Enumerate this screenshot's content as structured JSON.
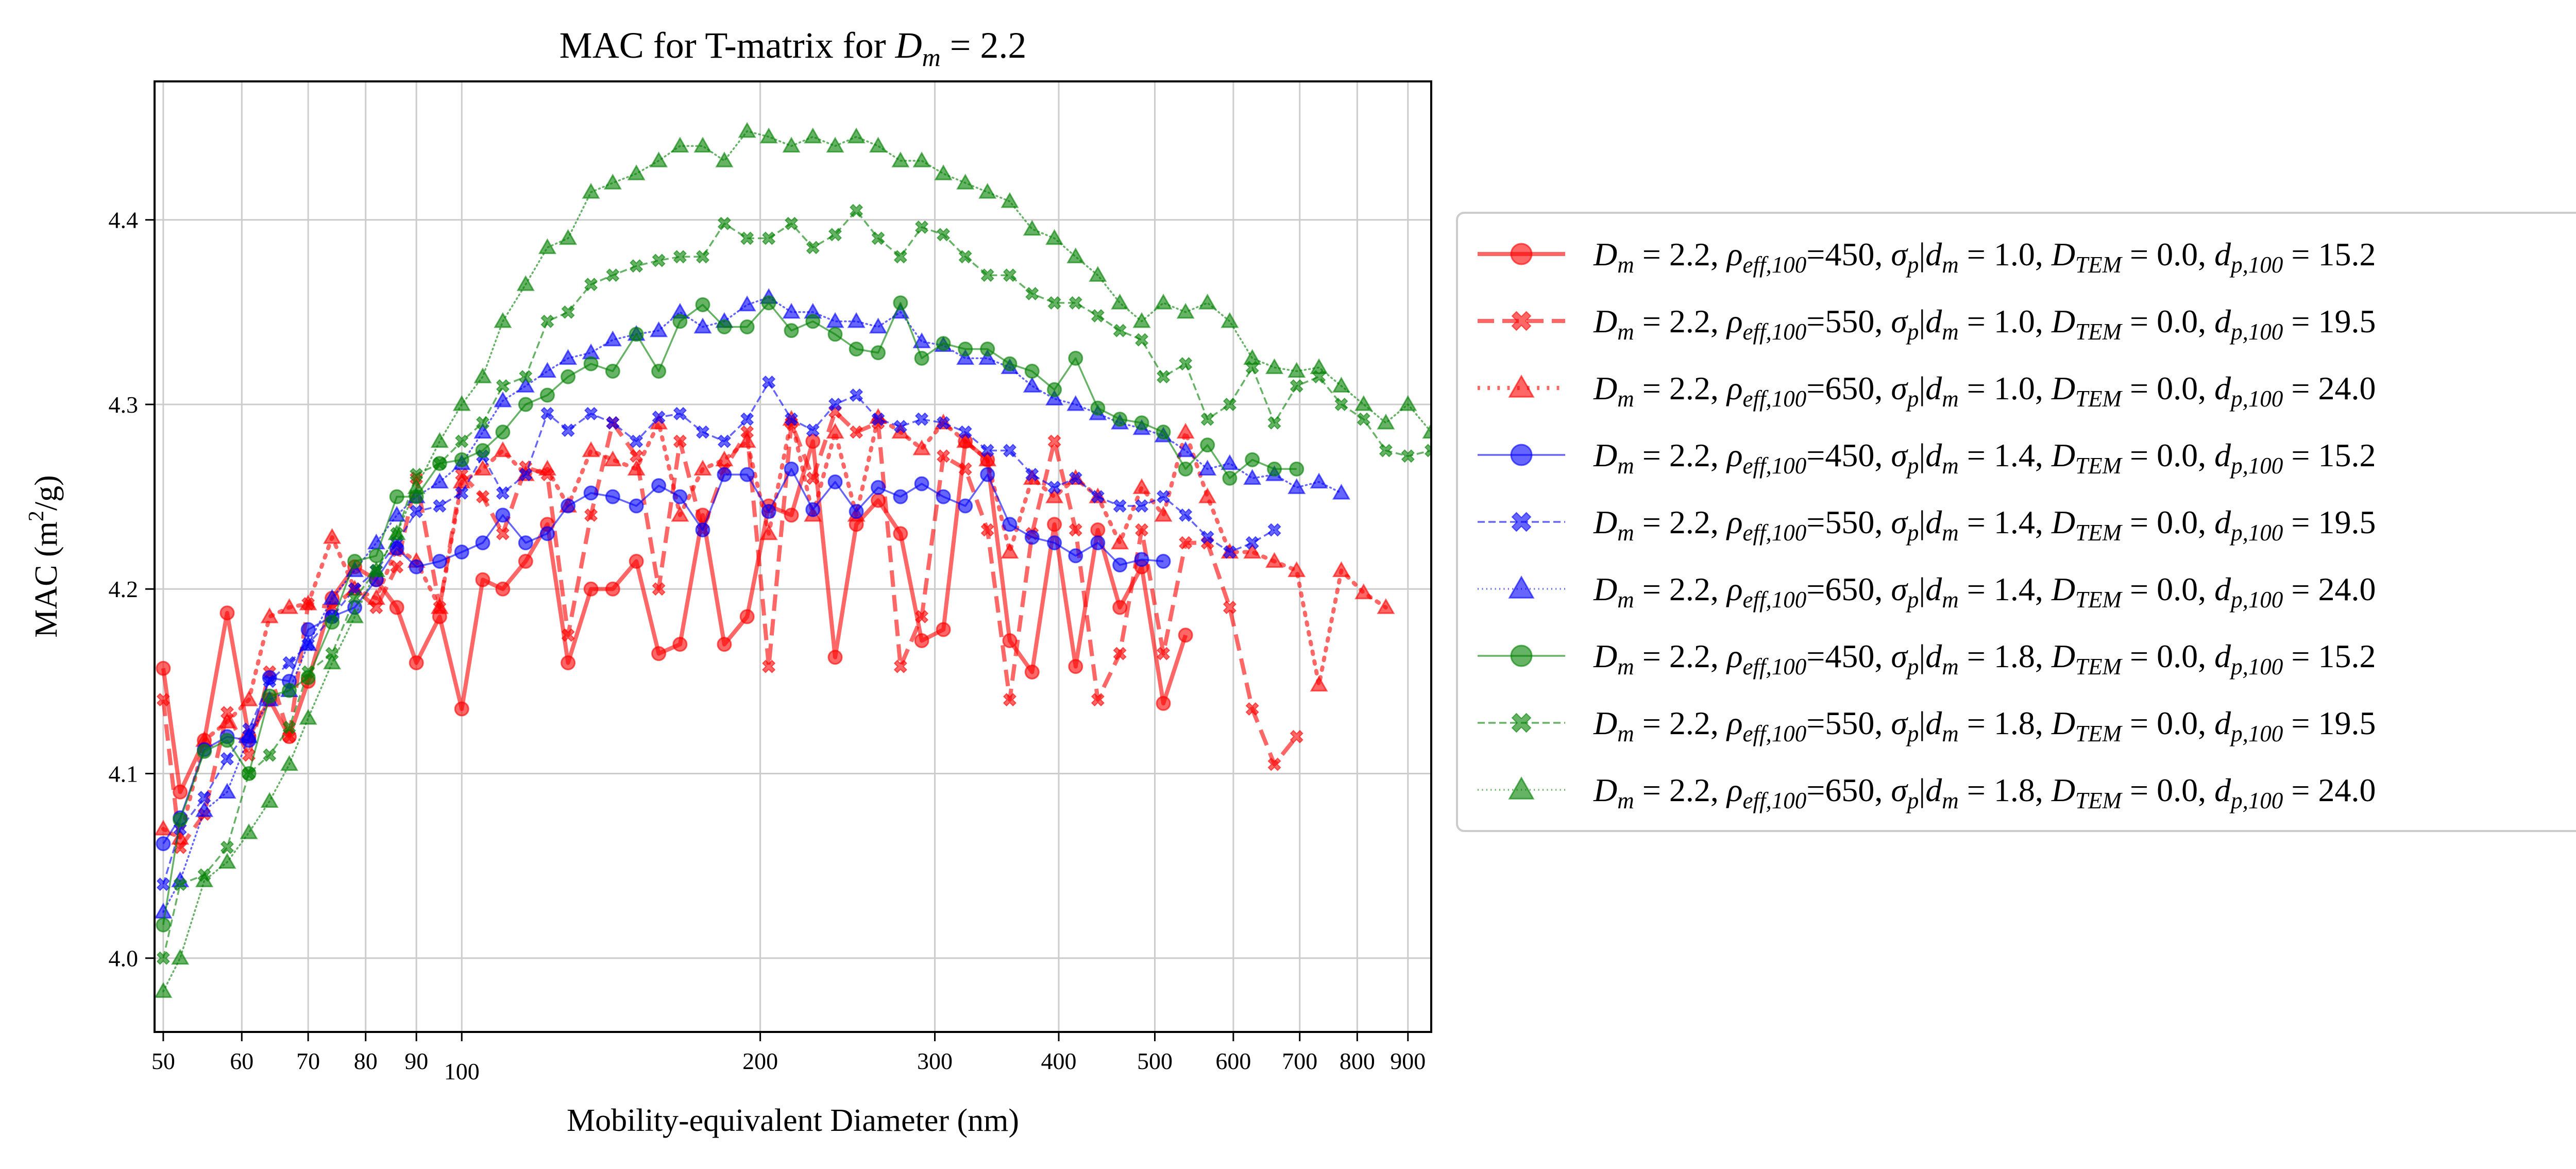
{
  "chart_data": {
    "type": "line",
    "title": "MAC for T-matrix for D_m = 2.2",
    "xlabel": "Mobility-equivalent Diameter (nm)",
    "ylabel": "MAC (m²/g)",
    "xscale": "log",
    "xlim": [
      49,
      950
    ],
    "ylim": [
      3.96,
      4.475
    ],
    "x_ticks": [
      50,
      60,
      70,
      80,
      90,
      100,
      200,
      300,
      400,
      500,
      600,
      700,
      800,
      900
    ],
    "x_tick_labels": [
      "50",
      "60",
      "70",
      "80",
      "90",
      "100",
      "200",
      "300",
      "400",
      "500",
      "600",
      "700",
      "800",
      "900"
    ],
    "y_ticks": [
      4.0,
      4.1,
      4.2,
      4.3,
      4.4
    ],
    "y_tick_labels": [
      "4.0",
      "4.1",
      "4.2",
      "4.3",
      "4.4"
    ],
    "grid": true,
    "legend_position": "outside-right",
    "series": [
      {
        "name": "D_m = 2.2, ρ_eff,100=450, σ_p|d_m = 1.0, D_TEM = 0.0, d_p,100 = 15.2",
        "color": "#ff0000",
        "line": "solid",
        "line_width": "thick",
        "marker": "circle",
        "x": [
          50,
          52,
          55,
          58,
          61,
          64,
          67,
          70,
          74,
          78,
          82,
          86,
          90,
          95,
          100,
          105,
          110,
          116,
          122,
          128,
          135,
          142,
          150,
          158,
          166,
          175,
          184,
          194,
          204,
          215,
          226,
          238,
          250,
          263,
          277,
          291,
          306,
          322,
          339,
          357,
          376,
          396,
          416,
          438,
          461,
          485,
          510,
          537
        ],
        "y": [
          4.157,
          4.09,
          4.118,
          4.187,
          4.12,
          4.14,
          4.12,
          4.15,
          4.195,
          4.212,
          4.205,
          4.19,
          4.16,
          4.185,
          4.135,
          4.205,
          4.2,
          4.215,
          4.235,
          4.16,
          4.2,
          4.2,
          4.215,
          4.165,
          4.17,
          4.24,
          4.17,
          4.185,
          4.245,
          4.24,
          4.28,
          4.163,
          4.235,
          4.248,
          4.23,
          4.172,
          4.178,
          4.28,
          4.27,
          4.172,
          4.155,
          4.235,
          4.158,
          4.232,
          4.19,
          4.212,
          4.138,
          4.175
        ]
      },
      {
        "name": "D_m = 2.2, ρ_eff,100=550, σ_p|d_m = 1.0, D_TEM = 0.0, d_p,100 = 19.5",
        "color": "#ff0000",
        "line": "dashed",
        "line_width": "thick",
        "marker": "x",
        "x": [
          50,
          52,
          55,
          58,
          61,
          64,
          67,
          70,
          74,
          78,
          82,
          86,
          90,
          95,
          100,
          105,
          110,
          116,
          122,
          128,
          135,
          142,
          150,
          158,
          166,
          175,
          184,
          194,
          204,
          215,
          226,
          238,
          250,
          263,
          277,
          291,
          306,
          322,
          339,
          357,
          376,
          396,
          416,
          438,
          461,
          485,
          510,
          537,
          565,
          595,
          627,
          660,
          695
        ],
        "y": [
          4.14,
          4.06,
          4.078,
          4.133,
          4.11,
          4.155,
          4.12,
          4.192,
          4.19,
          4.2,
          4.19,
          4.212,
          4.26,
          4.19,
          4.262,
          4.25,
          4.23,
          4.266,
          4.262,
          4.175,
          4.24,
          4.29,
          4.272,
          4.2,
          4.28,
          4.232,
          4.265,
          4.285,
          4.158,
          4.29,
          4.26,
          4.296,
          4.285,
          4.29,
          4.158,
          4.185,
          4.272,
          4.265,
          4.232,
          4.14,
          4.23,
          4.28,
          4.232,
          4.14,
          4.165,
          4.232,
          4.165,
          4.225,
          4.225,
          4.19,
          4.135,
          4.105,
          4.12
        ]
      },
      {
        "name": "D_m = 2.2, ρ_eff,100=650, σ_p|d_m = 1.0, D_TEM = 0.0, d_p,100 = 24.0",
        "color": "#ff0000",
        "line": "dotted",
        "line_width": "thick",
        "marker": "triangle",
        "x": [
          50,
          52,
          55,
          58,
          61,
          64,
          67,
          70,
          74,
          78,
          82,
          86,
          90,
          95,
          100,
          105,
          110,
          116,
          122,
          128,
          135,
          142,
          150,
          158,
          166,
          175,
          184,
          194,
          204,
          215,
          226,
          238,
          250,
          263,
          277,
          291,
          306,
          322,
          339,
          357,
          376,
          396,
          416,
          438,
          461,
          485,
          510,
          537,
          565,
          595,
          627,
          660,
          695,
          732,
          771,
          812,
          855
        ],
        "y": [
          4.07,
          4.065,
          4.118,
          4.128,
          4.14,
          4.185,
          4.19,
          4.192,
          4.228,
          4.2,
          4.195,
          4.222,
          4.215,
          4.19,
          4.258,
          4.265,
          4.275,
          4.262,
          4.265,
          4.245,
          4.275,
          4.27,
          4.265,
          4.29,
          4.24,
          4.265,
          4.27,
          4.28,
          4.23,
          4.292,
          4.24,
          4.285,
          4.24,
          4.293,
          4.285,
          4.276,
          4.29,
          4.28,
          4.27,
          4.22,
          4.26,
          4.25,
          4.26,
          4.25,
          4.225,
          4.255,
          4.24,
          4.285,
          4.25,
          4.22,
          4.22,
          4.215,
          4.21,
          4.148,
          4.21,
          4.198,
          4.19
        ]
      },
      {
        "name": "D_m = 2.2, ρ_eff,100=450, σ_p|d_m = 1.4, D_TEM = 0.0, d_p,100 = 15.2",
        "color": "#0000ff",
        "line": "solid",
        "line_width": "thin",
        "marker": "circle",
        "x": [
          50,
          52,
          55,
          58,
          61,
          64,
          67,
          70,
          74,
          78,
          82,
          86,
          90,
          95,
          100,
          105,
          110,
          116,
          122,
          128,
          135,
          142,
          150,
          158,
          166,
          175,
          184,
          194,
          204,
          215,
          226,
          238,
          250,
          263,
          277,
          291,
          306,
          322,
          339,
          357,
          376,
          396,
          416,
          438,
          461,
          485,
          510
        ],
        "y": [
          4.062,
          4.076,
          4.113,
          4.12,
          4.118,
          4.152,
          4.15,
          4.178,
          4.185,
          4.19,
          4.205,
          4.222,
          4.212,
          4.215,
          4.22,
          4.225,
          4.24,
          4.225,
          4.23,
          4.245,
          4.252,
          4.25,
          4.245,
          4.256,
          4.25,
          4.232,
          4.262,
          4.262,
          4.242,
          4.265,
          4.243,
          4.258,
          4.242,
          4.255,
          4.25,
          4.257,
          4.25,
          4.245,
          4.262,
          4.235,
          4.228,
          4.225,
          4.218,
          4.225,
          4.213,
          4.216,
          4.215
        ]
      },
      {
        "name": "D_m = 2.2, ρ_eff,100=550, σ_p|d_m = 1.4, D_TEM = 0.0, d_p,100 = 19.5",
        "color": "#0000ff",
        "line": "dashed",
        "line_width": "thin",
        "marker": "x",
        "x": [
          50,
          52,
          55,
          58,
          61,
          64,
          67,
          70,
          74,
          78,
          82,
          86,
          90,
          95,
          100,
          105,
          110,
          116,
          122,
          128,
          135,
          142,
          150,
          158,
          166,
          175,
          184,
          194,
          204,
          215,
          226,
          238,
          250,
          263,
          277,
          291,
          306,
          322,
          339,
          357,
          376,
          396,
          416,
          438,
          461,
          485,
          510,
          537,
          565,
          595,
          627,
          660
        ],
        "y": [
          4.04,
          4.07,
          4.087,
          4.108,
          4.124,
          4.15,
          4.16,
          4.17,
          4.185,
          4.2,
          4.21,
          4.225,
          4.242,
          4.245,
          4.252,
          4.272,
          4.252,
          4.262,
          4.295,
          4.286,
          4.295,
          4.29,
          4.28,
          4.293,
          4.295,
          4.285,
          4.28,
          4.292,
          4.312,
          4.292,
          4.286,
          4.3,
          4.305,
          4.292,
          4.288,
          4.292,
          4.29,
          4.285,
          4.275,
          4.275,
          4.262,
          4.255,
          4.26,
          4.25,
          4.245,
          4.245,
          4.25,
          4.24,
          4.228,
          4.22,
          4.225,
          4.232
        ]
      },
      {
        "name": "D_m = 2.2, ρ_eff,100=650, σ_p|d_m = 1.4, D_TEM = 0.0, d_p,100 = 24.0",
        "color": "#0000ff",
        "line": "dotted",
        "line_width": "thin",
        "marker": "triangle",
        "x": [
          50,
          52,
          55,
          58,
          61,
          64,
          67,
          70,
          74,
          78,
          82,
          86,
          90,
          95,
          100,
          105,
          110,
          116,
          122,
          128,
          135,
          142,
          150,
          158,
          166,
          175,
          184,
          194,
          204,
          215,
          226,
          238,
          250,
          263,
          277,
          291,
          306,
          322,
          339,
          357,
          376,
          396,
          416,
          438,
          461,
          485,
          510,
          537,
          565,
          595,
          627,
          660,
          695,
          732,
          771
        ],
        "y": [
          4.025,
          4.042,
          4.08,
          4.09,
          4.12,
          4.14,
          4.145,
          4.17,
          4.195,
          4.21,
          4.225,
          4.24,
          4.25,
          4.258,
          4.268,
          4.285,
          4.302,
          4.31,
          4.318,
          4.325,
          4.328,
          4.335,
          4.338,
          4.34,
          4.35,
          4.342,
          4.345,
          4.354,
          4.358,
          4.35,
          4.35,
          4.345,
          4.345,
          4.342,
          4.35,
          4.334,
          4.332,
          4.325,
          4.325,
          4.32,
          4.31,
          4.303,
          4.3,
          4.295,
          4.29,
          4.287,
          4.283,
          4.275,
          4.265,
          4.268,
          4.26,
          4.262,
          4.255,
          4.258,
          4.252
        ]
      },
      {
        "name": "D_m = 2.2, ρ_eff,100=450, σ_p|d_m = 1.8, D_TEM = 0.0, d_p,100 = 15.2",
        "color": "#008000",
        "line": "solid",
        "line_width": "thin",
        "marker": "circle",
        "x": [
          50,
          52,
          55,
          58,
          61,
          64,
          67,
          70,
          74,
          78,
          82,
          86,
          90,
          95,
          100,
          105,
          110,
          116,
          122,
          128,
          135,
          142,
          150,
          158,
          166,
          175,
          184,
          194,
          204,
          215,
          226,
          238,
          250,
          263,
          277,
          291,
          306,
          322,
          339,
          357,
          376,
          396,
          416,
          438,
          461,
          485,
          510,
          537,
          565,
          595,
          627,
          660,
          695
        ],
        "y": [
          4.018,
          4.075,
          4.112,
          4.118,
          4.1,
          4.142,
          4.145,
          4.152,
          4.182,
          4.215,
          4.218,
          4.25,
          4.25,
          4.268,
          4.27,
          4.275,
          4.285,
          4.3,
          4.305,
          4.315,
          4.322,
          4.318,
          4.338,
          4.318,
          4.345,
          4.354,
          4.342,
          4.342,
          4.355,
          4.34,
          4.345,
          4.338,
          4.33,
          4.328,
          4.355,
          4.325,
          4.333,
          4.33,
          4.33,
          4.322,
          4.318,
          4.308,
          4.325,
          4.298,
          4.292,
          4.29,
          4.285,
          4.265,
          4.278,
          4.26,
          4.27,
          4.265,
          4.265
        ]
      },
      {
        "name": "D_m = 2.2, ρ_eff,100=550, σ_p|d_m = 1.8, D_TEM = 0.0, d_p,100 = 19.5",
        "color": "#008000",
        "line": "dashed",
        "line_width": "thin",
        "marker": "x",
        "x": [
          50,
          52,
          55,
          58,
          61,
          64,
          67,
          70,
          74,
          78,
          82,
          86,
          90,
          95,
          100,
          105,
          110,
          116,
          122,
          128,
          135,
          142,
          150,
          158,
          166,
          175,
          184,
          194,
          204,
          215,
          226,
          238,
          250,
          263,
          277,
          291,
          306,
          322,
          339,
          357,
          376,
          396,
          416,
          438,
          461,
          485,
          510,
          537,
          565,
          595,
          627,
          660,
          695,
          732,
          771,
          812,
          855,
          900,
          950
        ],
        "y": [
          4.0,
          4.04,
          4.045,
          4.06,
          4.1,
          4.11,
          4.125,
          4.155,
          4.165,
          4.195,
          4.21,
          4.23,
          4.262,
          4.268,
          4.28,
          4.29,
          4.31,
          4.315,
          4.345,
          4.35,
          4.365,
          4.37,
          4.375,
          4.378,
          4.38,
          4.38,
          4.398,
          4.39,
          4.39,
          4.398,
          4.385,
          4.392,
          4.405,
          4.39,
          4.38,
          4.396,
          4.392,
          4.38,
          4.37,
          4.37,
          4.36,
          4.355,
          4.355,
          4.348,
          4.34,
          4.335,
          4.315,
          4.322,
          4.292,
          4.3,
          4.32,
          4.29,
          4.31,
          4.315,
          4.3,
          4.292,
          4.275,
          4.272,
          4.275
        ]
      },
      {
        "name": "D_m = 2.2, ρ_eff,100=650, σ_p|d_m = 1.8, D_TEM = 0.0, d_p,100 = 24.0",
        "color": "#008000",
        "line": "dotted",
        "line_width": "thin",
        "marker": "triangle",
        "x": [
          50,
          52,
          55,
          58,
          61,
          64,
          67,
          70,
          74,
          78,
          82,
          86,
          90,
          95,
          100,
          105,
          110,
          116,
          122,
          128,
          135,
          142,
          150,
          158,
          166,
          175,
          184,
          194,
          204,
          215,
          226,
          238,
          250,
          263,
          277,
          291,
          306,
          322,
          339,
          357,
          376,
          396,
          416,
          438,
          461,
          485,
          510,
          537,
          565,
          595,
          627,
          660,
          695,
          732,
          771,
          812,
          855,
          900,
          950
        ],
        "y": [
          3.982,
          4.0,
          4.042,
          4.052,
          4.068,
          4.085,
          4.105,
          4.13,
          4.16,
          4.185,
          4.21,
          4.23,
          4.255,
          4.28,
          4.3,
          4.315,
          4.345,
          4.365,
          4.385,
          4.39,
          4.415,
          4.42,
          4.425,
          4.432,
          4.44,
          4.44,
          4.432,
          4.448,
          4.445,
          4.44,
          4.445,
          4.44,
          4.445,
          4.44,
          4.432,
          4.432,
          4.425,
          4.42,
          4.415,
          4.41,
          4.395,
          4.39,
          4.38,
          4.37,
          4.355,
          4.345,
          4.355,
          4.35,
          4.355,
          4.345,
          4.325,
          4.32,
          4.318,
          4.32,
          4.31,
          4.3,
          4.29,
          4.3,
          4.285
        ]
      }
    ]
  }
}
